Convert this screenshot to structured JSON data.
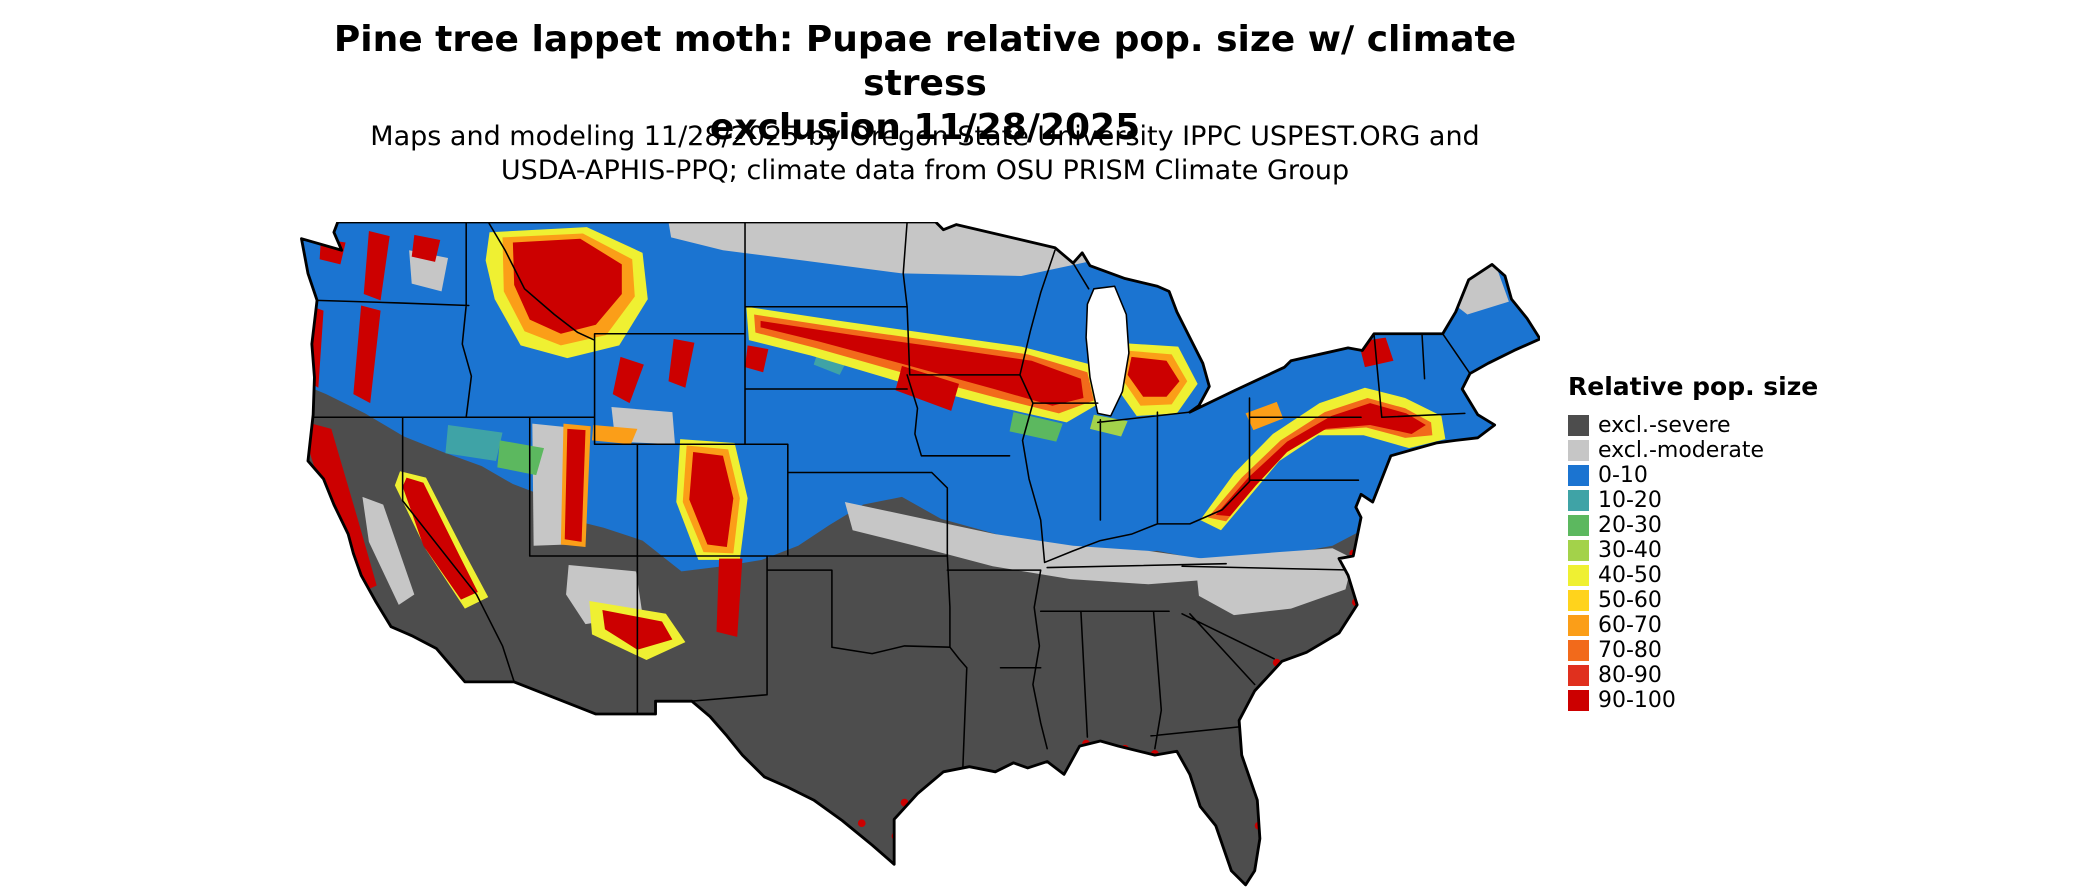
{
  "header": {
    "title_line1": "Pine tree lappet moth: Pupae relative pop. size w/ climate stress",
    "title_line2": "exclusion 11/28/2025",
    "subtitle_line1": "Maps and modeling 11/28/2025 by Oregon State University IPPC USPEST.ORG and",
    "subtitle_line2": "USDA-APHIS-PPQ; climate data from OSU PRISM Climate Group"
  },
  "legend": {
    "title": "Relative pop. size",
    "items": [
      {
        "key": "exsev",
        "label": "excl.-severe",
        "color": "#4d4d4d"
      },
      {
        "key": "exmod",
        "label": "excl.-moderate",
        "color": "#c6c6c6"
      },
      {
        "key": "b0",
        "label": "0-10",
        "color": "#1b74d1"
      },
      {
        "key": "b10",
        "label": "10-20",
        "color": "#3fa3a6"
      },
      {
        "key": "b20",
        "label": "20-30",
        "color": "#5cb85f"
      },
      {
        "key": "b30",
        "label": "30-40",
        "color": "#a3d24a"
      },
      {
        "key": "b40",
        "label": "40-50",
        "color": "#eff032"
      },
      {
        "key": "b50",
        "label": "50-60",
        "color": "#ffd31c"
      },
      {
        "key": "b60",
        "label": "60-70",
        "color": "#fb9e18"
      },
      {
        "key": "b70",
        "label": "70-80",
        "color": "#f26a1b"
      },
      {
        "key": "b80",
        "label": "80-90",
        "color": "#e0301e"
      },
      {
        "key": "b90",
        "label": "90-100",
        "color": "#cc0000"
      }
    ]
  },
  "map": {
    "water_color": "#ffffff",
    "state_border_color": "#000000"
  }
}
